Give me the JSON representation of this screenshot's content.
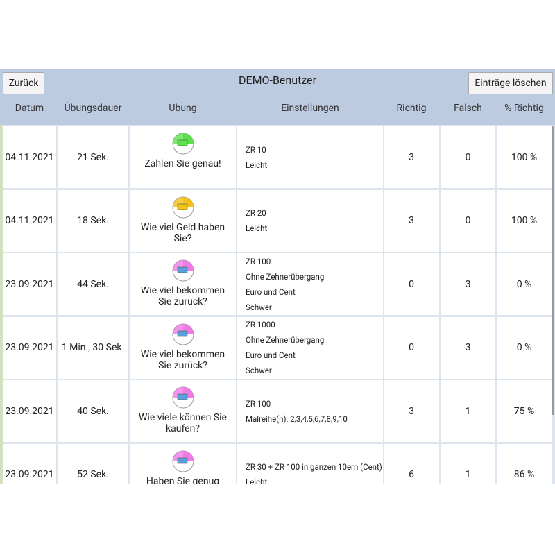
{
  "header": {
    "title": "DEMO-Benutzer",
    "back_button": "Zurück",
    "delete_button": "Einträge löschen"
  },
  "table": {
    "columns": [
      "Datum",
      "Übungsdauer",
      "Übung",
      "Einstellungen",
      "Richtig",
      "Falsch",
      "% Richtig"
    ],
    "rows": [
      {
        "date": "04.11.2021",
        "duration": "21 Sek.",
        "exercise": "Zahlen Sie genau!",
        "settings": [
          "ZR 10",
          "Leicht"
        ],
        "correct": "3",
        "wrong": "0",
        "percent": "100 %"
      },
      {
        "date": "04.11.2021",
        "duration": "18 Sek.",
        "exercise": "Wie viel Geld haben Sie?",
        "settings": [
          "ZR 20",
          "Leicht"
        ],
        "correct": "3",
        "wrong": "0",
        "percent": "100 %"
      },
      {
        "date": "23.09.2021",
        "duration": "44 Sek.",
        "exercise": "Wie viel bekommen Sie zurück?",
        "settings": [
          "ZR 100",
          "Ohne Zehnerübergang",
          "Euro und Cent",
          "Schwer"
        ],
        "correct": "0",
        "wrong": "3",
        "percent": "0 %"
      },
      {
        "date": "23.09.2021",
        "duration": "1 Min., 30 Sek.",
        "exercise": "Wie viel bekommen Sie zurück?",
        "settings": [
          "ZR 1000",
          "Ohne Zehnerübergang",
          "Euro und Cent",
          "Schwer"
        ],
        "correct": "0",
        "wrong": "3",
        "percent": "0 %"
      },
      {
        "date": "23.09.2021",
        "duration": "40 Sek.",
        "exercise": "Wie viele können Sie kaufen?",
        "settings": [
          "ZR 100",
          "Malreihe(n): 2,3,4,5,6,7,8,9,10"
        ],
        "correct": "3",
        "wrong": "1",
        "percent": "75 %"
      },
      {
        "date": "23.09.2021",
        "duration": "52 Sek.",
        "exercise": "Haben Sie genug Geld?",
        "settings": [
          "ZR 30 + ZR 100 in ganzen 10ern (Cent)",
          "Leicht"
        ],
        "correct": "6",
        "wrong": "1",
        "percent": "86 %"
      }
    ]
  }
}
